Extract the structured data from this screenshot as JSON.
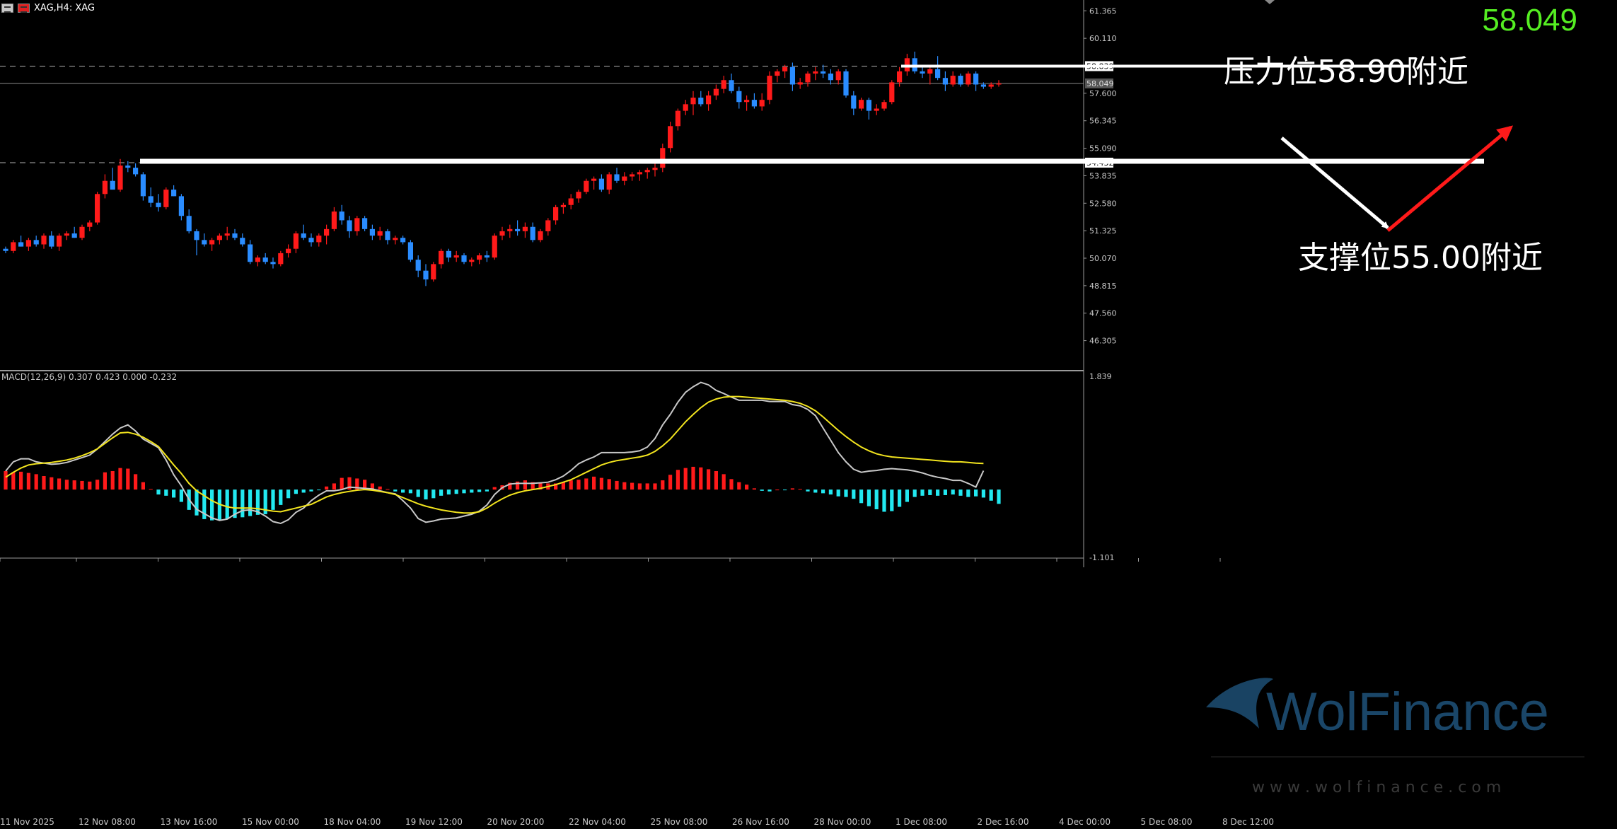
{
  "header": {
    "symbol_label": "XAG,H4: XAG",
    "last_price": "58.049"
  },
  "colors": {
    "bull": "#ff1a1a",
    "bear": "#2a8cff",
    "macd_pos": "#ff1a1a",
    "macd_neg": "#22e8f0",
    "signal": "#f2e41e",
    "macd_line": "#c8c8c8",
    "price_text": "#55ee22"
  },
  "annotations": {
    "resistance_label": "压力位58.90附近",
    "support_label": "支撑位55.00附近",
    "resistance_tag": "58.839",
    "support_tag": "54.432",
    "current_tag": "58.049"
  },
  "watermark": {
    "brand": "WolFinance",
    "url": "w w w . w o l f i n a n c e . c o m"
  },
  "chart_data": [
    {
      "type": "candlestick",
      "title": "XAG,H4: XAG",
      "timeframe": "H4",
      "y_ticks": [
        "61.365",
        "60.110",
        "58.839",
        "57.600",
        "56.345",
        "55.090",
        "54.432",
        "53.835",
        "52.580",
        "51.325",
        "50.070",
        "48.815",
        "47.560",
        "46.305"
      ],
      "x_ticks": [
        "11 Nov 2025",
        "12 Nov 08:00",
        "13 Nov 16:00",
        "15 Nov 00:00",
        "18 Nov 04:00",
        "19 Nov 12:00",
        "20 Nov 20:00",
        "22 Nov 04:00",
        "25 Nov 08:00",
        "26 Nov 16:00",
        "28 Nov 00:00",
        "1 Dec 08:00",
        "2 Dec 16:00",
        "4 Dec 00:00",
        "5 Dec 08:00",
        "8 Dec 12:00"
      ],
      "ylim": [
        45.0,
        61.6
      ],
      "resistance": 58.839,
      "support": 54.432,
      "last_price": 58.049,
      "candles": [
        [
          50.5,
          50.6,
          50.3,
          50.4
        ],
        [
          50.4,
          50.9,
          50.3,
          50.8
        ],
        [
          50.8,
          51.1,
          50.6,
          50.6
        ],
        [
          50.6,
          51.0,
          50.4,
          50.9
        ],
        [
          50.9,
          51.1,
          50.6,
          50.7
        ],
        [
          50.7,
          51.2,
          50.5,
          51.1
        ],
        [
          51.1,
          51.3,
          50.5,
          50.6
        ],
        [
          50.6,
          51.2,
          50.4,
          51.1
        ],
        [
          51.1,
          51.3,
          50.9,
          51.2
        ],
        [
          51.2,
          51.5,
          51.0,
          51.0
        ],
        [
          51.0,
          51.6,
          50.9,
          51.5
        ],
        [
          51.5,
          51.8,
          51.3,
          51.7
        ],
        [
          51.7,
          53.1,
          51.6,
          53.0
        ],
        [
          53.0,
          53.9,
          52.8,
          53.6
        ],
        [
          53.6,
          54.2,
          53.3,
          53.2
        ],
        [
          53.2,
          54.6,
          53.1,
          54.3
        ],
        [
          54.3,
          54.5,
          54.0,
          54.2
        ],
        [
          54.2,
          54.4,
          53.8,
          53.9
        ],
        [
          53.9,
          54.0,
          52.7,
          52.9
        ],
        [
          52.9,
          53.3,
          52.4,
          52.6
        ],
        [
          52.6,
          53.0,
          52.2,
          52.4
        ],
        [
          52.4,
          53.3,
          52.3,
          53.2
        ],
        [
          53.2,
          53.4,
          52.9,
          52.9
        ],
        [
          52.9,
          53.0,
          51.8,
          52.0
        ],
        [
          52.0,
          52.3,
          51.2,
          51.3
        ],
        [
          51.3,
          51.4,
          50.2,
          50.9
        ],
        [
          50.9,
          51.2,
          50.6,
          50.7
        ],
        [
          50.7,
          51.0,
          50.4,
          50.9
        ],
        [
          50.9,
          51.2,
          50.7,
          51.1
        ],
        [
          51.1,
          51.5,
          50.9,
          51.2
        ],
        [
          51.2,
          51.4,
          50.9,
          51.0
        ],
        [
          51.0,
          51.2,
          50.6,
          50.7
        ],
        [
          50.7,
          50.9,
          49.8,
          49.9
        ],
        [
          49.9,
          50.2,
          49.7,
          50.1
        ],
        [
          50.1,
          50.3,
          49.8,
          49.9
        ],
        [
          49.9,
          50.1,
          49.6,
          49.8
        ],
        [
          49.8,
          50.4,
          49.7,
          50.3
        ],
        [
          50.3,
          50.7,
          50.1,
          50.5
        ],
        [
          50.5,
          51.3,
          50.3,
          51.2
        ],
        [
          51.2,
          51.6,
          50.9,
          51.0
        ],
        [
          51.0,
          51.2,
          50.6,
          50.8
        ],
        [
          50.8,
          51.2,
          50.6,
          51.1
        ],
        [
          51.1,
          51.6,
          50.7,
          51.4
        ],
        [
          51.4,
          52.4,
          51.3,
          52.2
        ],
        [
          52.2,
          52.5,
          51.6,
          51.8
        ],
        [
          51.8,
          52.0,
          51.0,
          51.3
        ],
        [
          51.3,
          52.0,
          51.1,
          51.9
        ],
        [
          51.9,
          52.0,
          51.3,
          51.4
        ],
        [
          51.4,
          51.6,
          50.9,
          51.1
        ],
        [
          51.1,
          51.5,
          50.9,
          51.3
        ],
        [
          51.3,
          51.4,
          50.7,
          50.9
        ],
        [
          50.9,
          51.1,
          50.7,
          51.0
        ],
        [
          51.0,
          51.1,
          50.7,
          50.8
        ],
        [
          50.8,
          50.9,
          49.9,
          50.0
        ],
        [
          50.0,
          50.2,
          49.2,
          49.5
        ],
        [
          49.5,
          49.8,
          48.8,
          49.1
        ],
        [
          49.1,
          49.9,
          49.0,
          49.8
        ],
        [
          49.8,
          50.5,
          49.6,
          50.4
        ],
        [
          50.4,
          50.5,
          49.9,
          50.1
        ],
        [
          50.1,
          50.4,
          49.9,
          50.2
        ],
        [
          50.2,
          50.3,
          49.8,
          49.9
        ],
        [
          49.9,
          50.1,
          49.7,
          50.0
        ],
        [
          50.0,
          50.3,
          49.8,
          50.2
        ],
        [
          50.2,
          50.4,
          49.9,
          50.1
        ],
        [
          50.1,
          51.2,
          50.0,
          51.1
        ],
        [
          51.1,
          51.5,
          50.9,
          51.3
        ],
        [
          51.3,
          51.6,
          51.0,
          51.4
        ],
        [
          51.4,
          51.8,
          51.1,
          51.3
        ],
        [
          51.3,
          51.7,
          51.0,
          51.5
        ],
        [
          51.5,
          51.7,
          50.8,
          50.9
        ],
        [
          50.9,
          51.4,
          50.8,
          51.3
        ],
        [
          51.3,
          51.9,
          51.1,
          51.8
        ],
        [
          51.8,
          52.5,
          51.6,
          52.4
        ],
        [
          52.4,
          52.6,
          52.1,
          52.5
        ],
        [
          52.5,
          53.0,
          52.3,
          52.8
        ],
        [
          52.8,
          53.2,
          52.6,
          53.1
        ],
        [
          53.1,
          53.7,
          53.0,
          53.6
        ],
        [
          53.6,
          53.8,
          53.2,
          53.7
        ],
        [
          53.7,
          53.9,
          53.1,
          53.2
        ],
        [
          53.2,
          54.0,
          53.0,
          53.9
        ],
        [
          53.9,
          54.2,
          53.5,
          53.6
        ],
        [
          53.6,
          54.0,
          53.4,
          53.8
        ],
        [
          53.8,
          54.0,
          53.6,
          53.9
        ],
        [
          53.9,
          54.1,
          53.6,
          54.0
        ],
        [
          54.0,
          54.2,
          53.7,
          54.1
        ],
        [
          54.1,
          54.4,
          53.8,
          54.2
        ],
        [
          54.2,
          55.3,
          54.0,
          55.1
        ],
        [
          55.1,
          56.3,
          54.9,
          56.1
        ],
        [
          56.1,
          56.9,
          55.9,
          56.8
        ],
        [
          56.8,
          57.3,
          56.6,
          57.1
        ],
        [
          57.1,
          57.7,
          56.6,
          57.4
        ],
        [
          57.4,
          57.7,
          57.0,
          57.1
        ],
        [
          57.1,
          57.7,
          56.8,
          57.5
        ],
        [
          57.5,
          58.0,
          57.3,
          57.8
        ],
        [
          57.8,
          58.4,
          57.6,
          58.2
        ],
        [
          58.2,
          58.5,
          57.6,
          57.7
        ],
        [
          57.7,
          57.9,
          56.9,
          57.2
        ],
        [
          57.2,
          57.5,
          56.8,
          57.3
        ],
        [
          57.3,
          57.6,
          56.9,
          57.0
        ],
        [
          57.0,
          57.6,
          56.8,
          57.3
        ],
        [
          57.3,
          58.6,
          57.1,
          58.4
        ],
        [
          58.4,
          58.7,
          58.1,
          58.6
        ],
        [
          58.6,
          58.9,
          58.3,
          58.8
        ],
        [
          58.8,
          59.0,
          57.7,
          58.0
        ],
        [
          58.0,
          58.3,
          57.8,
          58.1
        ],
        [
          58.1,
          58.6,
          57.9,
          58.5
        ],
        [
          58.5,
          58.8,
          58.2,
          58.6
        ],
        [
          58.6,
          58.9,
          58.3,
          58.5
        ],
        [
          58.5,
          58.7,
          58.0,
          58.2
        ],
        [
          58.2,
          58.7,
          58.0,
          58.6
        ],
        [
          58.6,
          58.7,
          57.4,
          57.5
        ],
        [
          57.5,
          57.7,
          56.6,
          56.9
        ],
        [
          56.9,
          57.4,
          56.8,
          57.3
        ],
        [
          57.3,
          57.4,
          56.4,
          56.8
        ],
        [
          56.8,
          57.1,
          56.6,
          56.9
        ],
        [
          56.9,
          57.3,
          56.8,
          57.2
        ],
        [
          57.2,
          58.2,
          57.1,
          58.1
        ],
        [
          58.1,
          58.8,
          57.9,
          58.6
        ],
        [
          58.6,
          59.4,
          58.4,
          59.2
        ],
        [
          59.2,
          59.5,
          58.5,
          58.6
        ],
        [
          58.6,
          58.8,
          58.3,
          58.5
        ],
        [
          58.5,
          58.8,
          58.0,
          58.7
        ],
        [
          58.7,
          59.3,
          58.2,
          58.3
        ],
        [
          58.3,
          58.6,
          57.7,
          58.0
        ],
        [
          58.0,
          58.6,
          57.9,
          58.4
        ],
        [
          58.4,
          58.5,
          57.9,
          58.0
        ],
        [
          58.0,
          58.6,
          57.9,
          58.5
        ],
        [
          58.5,
          58.6,
          57.7,
          58.0
        ],
        [
          58.0,
          58.1,
          57.8,
          57.9
        ],
        [
          57.9,
          58.1,
          57.8,
          58.0
        ],
        [
          58.0,
          58.2,
          57.9,
          58.049
        ]
      ]
    },
    {
      "type": "bar",
      "title": "MACD(12,26,9) 0.307 0.423 0.000 -0.232",
      "y_ticks": [
        "1.839",
        "-1.101"
      ],
      "ylim": [
        -1.101,
        1.839
      ],
      "histogram": [
        0.3,
        0.28,
        0.29,
        0.27,
        0.25,
        0.22,
        0.2,
        0.18,
        0.16,
        0.15,
        0.14,
        0.13,
        0.16,
        0.28,
        0.3,
        0.35,
        0.34,
        0.25,
        0.12,
        0.01,
        -0.08,
        -0.1,
        -0.13,
        -0.2,
        -0.33,
        -0.42,
        -0.48,
        -0.5,
        -0.5,
        -0.48,
        -0.46,
        -0.45,
        -0.43,
        -0.41,
        -0.4,
        -0.33,
        -0.25,
        -0.14,
        -0.07,
        -0.05,
        -0.03,
        -0.01,
        0.05,
        0.1,
        0.19,
        0.2,
        0.18,
        0.16,
        0.1,
        0.05,
        0.01,
        -0.03,
        -0.05,
        -0.06,
        -0.12,
        -0.16,
        -0.14,
        -0.1,
        -0.08,
        -0.07,
        -0.06,
        -0.05,
        -0.04,
        -0.03,
        0.04,
        0.07,
        0.11,
        0.13,
        0.15,
        0.12,
        0.11,
        0.1,
        0.1,
        0.12,
        0.15,
        0.16,
        0.18,
        0.21,
        0.19,
        0.17,
        0.14,
        0.12,
        0.11,
        0.1,
        0.1,
        0.1,
        0.15,
        0.24,
        0.32,
        0.35,
        0.37,
        0.36,
        0.33,
        0.3,
        0.25,
        0.17,
        0.12,
        0.08,
        0.02,
        -0.02,
        -0.03,
        0.0,
        -0.01,
        0.02,
        0.01,
        -0.03,
        -0.05,
        -0.06,
        -0.08,
        -0.11,
        -0.12,
        -0.15,
        -0.22,
        -0.27,
        -0.32,
        -0.36,
        -0.35,
        -0.28,
        -0.2,
        -0.12,
        -0.1,
        -0.09,
        -0.1,
        -0.09,
        -0.08,
        -0.1,
        -0.12,
        -0.11,
        -0.13,
        -0.18,
        -0.232
      ],
      "macd_line": [
        0.3,
        0.45,
        0.5,
        0.5,
        0.45,
        0.43,
        0.41,
        0.42,
        0.44,
        0.48,
        0.52,
        0.56,
        0.66,
        0.78,
        0.9,
        1.0,
        1.05,
        0.95,
        0.82,
        0.75,
        0.68,
        0.48,
        0.24,
        0.06,
        -0.16,
        -0.32,
        -0.39,
        -0.46,
        -0.5,
        -0.48,
        -0.4,
        -0.34,
        -0.33,
        -0.36,
        -0.43,
        -0.52,
        -0.55,
        -0.49,
        -0.37,
        -0.3,
        -0.18,
        -0.09,
        -0.02,
        -0.02,
        0.0,
        0.04,
        0.03,
        0.02,
        0.01,
        -0.02,
        -0.05,
        -0.07,
        -0.18,
        -0.3,
        -0.47,
        -0.53,
        -0.51,
        -0.48,
        -0.47,
        -0.46,
        -0.43,
        -0.4,
        -0.35,
        -0.25,
        -0.08,
        0.03,
        0.09,
        0.1,
        0.1,
        0.1,
        0.11,
        0.12,
        0.16,
        0.22,
        0.31,
        0.42,
        0.48,
        0.53,
        0.6,
        0.6,
        0.6,
        0.6,
        0.61,
        0.63,
        0.69,
        0.83,
        1.05,
        1.22,
        1.42,
        1.58,
        1.67,
        1.74,
        1.7,
        1.61,
        1.56,
        1.5,
        1.45,
        1.45,
        1.45,
        1.45,
        1.43,
        1.43,
        1.43,
        1.38,
        1.36,
        1.3,
        1.2,
        1.0,
        0.8,
        0.6,
        0.45,
        0.33,
        0.28,
        0.3,
        0.31,
        0.33,
        0.34,
        0.33,
        0.32,
        0.3,
        0.27,
        0.23,
        0.2,
        0.18,
        0.15,
        0.15,
        0.1,
        0.04,
        0.307
      ],
      "signal_line": [
        0.2,
        0.28,
        0.35,
        0.4,
        0.42,
        0.43,
        0.44,
        0.46,
        0.48,
        0.51,
        0.55,
        0.6,
        0.66,
        0.75,
        0.84,
        0.92,
        0.93,
        0.9,
        0.85,
        0.78,
        0.7,
        0.55,
        0.4,
        0.26,
        0.1,
        -0.02,
        -0.1,
        -0.18,
        -0.24,
        -0.28,
        -0.3,
        -0.3,
        -0.3,
        -0.31,
        -0.33,
        -0.35,
        -0.36,
        -0.33,
        -0.3,
        -0.27,
        -0.24,
        -0.18,
        -0.12,
        -0.08,
        -0.05,
        -0.03,
        -0.01,
        0.0,
        -0.01,
        -0.03,
        -0.05,
        -0.08,
        -0.13,
        -0.18,
        -0.23,
        -0.27,
        -0.3,
        -0.33,
        -0.35,
        -0.37,
        -0.38,
        -0.38,
        -0.36,
        -0.3,
        -0.22,
        -0.15,
        -0.09,
        -0.05,
        -0.02,
        0.0,
        0.02,
        0.05,
        0.08,
        0.12,
        0.16,
        0.22,
        0.28,
        0.34,
        0.4,
        0.44,
        0.47,
        0.49,
        0.51,
        0.53,
        0.56,
        0.62,
        0.71,
        0.82,
        0.96,
        1.1,
        1.22,
        1.33,
        1.42,
        1.47,
        1.5,
        1.51,
        1.51,
        1.5,
        1.49,
        1.48,
        1.47,
        1.46,
        1.45,
        1.43,
        1.4,
        1.35,
        1.28,
        1.18,
        1.07,
        0.96,
        0.86,
        0.77,
        0.69,
        0.63,
        0.58,
        0.55,
        0.53,
        0.52,
        0.51,
        0.5,
        0.49,
        0.48,
        0.47,
        0.46,
        0.45,
        0.45,
        0.44,
        0.43,
        0.423
      ]
    }
  ]
}
